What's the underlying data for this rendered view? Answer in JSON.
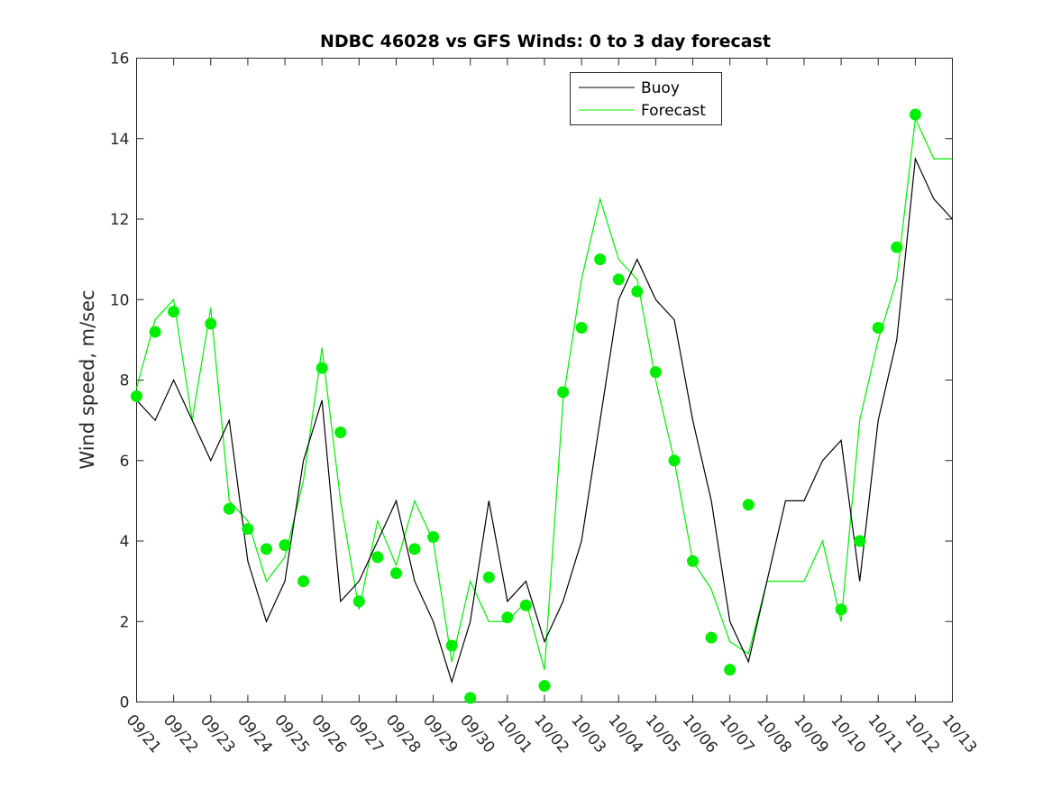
{
  "chart_data": {
    "type": "line",
    "title": "NDBC 46028 vs GFS Winds: 0 to 3 day forecast",
    "xlabel": "",
    "ylabel": "Wind speed, m/sec",
    "xlim": [
      "09/21",
      "10/13"
    ],
    "ylim": [
      0,
      16
    ],
    "yticks": [
      0,
      2,
      4,
      6,
      8,
      10,
      12,
      14,
      16
    ],
    "xticks": [
      "09/21",
      "09/22",
      "09/23",
      "09/24",
      "09/25",
      "09/26",
      "09/27",
      "09/28",
      "09/29",
      "09/30",
      "10/01",
      "10/02",
      "10/03",
      "10/04",
      "10/05",
      "10/06",
      "10/07",
      "10/08",
      "10/09",
      "10/10",
      "10/11",
      "10/12",
      "10/13"
    ],
    "grid": false,
    "legend_position": "top-center",
    "colors": {
      "buoy": "#000000",
      "forecast": "#00ee00",
      "points": "#00ee00"
    },
    "legend": [
      "Buoy",
      "Forecast"
    ],
    "series": [
      {
        "name": "Buoy",
        "x": [
          0,
          0.5,
          1,
          1.5,
          2,
          2.5,
          3,
          3.5,
          4,
          4.5,
          5,
          5.5,
          6,
          6.5,
          7,
          7.5,
          8,
          8.5,
          9,
          9.5,
          10,
          10.5,
          11,
          11.5,
          12,
          12.5,
          13,
          13.5,
          14,
          14.5,
          15,
          15.5,
          16,
          16.5,
          17,
          17.5,
          18,
          18.5,
          19,
          19.5,
          20,
          20.5,
          21,
          21.5,
          22
        ],
        "y": [
          7.5,
          7,
          8,
          7,
          6,
          7,
          3.5,
          2,
          3,
          6,
          7.5,
          2.5,
          3,
          4,
          5,
          3,
          2,
          0.5,
          2,
          5,
          2.5,
          3,
          1.5,
          2.5,
          4,
          7,
          10,
          11,
          10,
          9.5,
          7,
          5,
          2,
          1,
          3,
          5,
          5,
          6,
          6.5,
          3,
          7,
          9,
          13.5,
          12.5,
          12
        ]
      },
      {
        "name": "Forecast",
        "x": [
          0,
          0.5,
          1,
          1.5,
          2,
          2.5,
          3,
          3.5,
          4,
          4.5,
          5,
          5.5,
          6,
          6.5,
          7,
          7.5,
          8,
          8.5,
          9,
          9.5,
          10,
          10.5,
          11,
          11.5,
          12,
          12.5,
          13,
          13.5,
          14,
          14.5,
          15,
          15.5,
          16,
          16.5,
          17,
          17.5,
          18,
          18.5,
          19,
          19.5,
          20,
          20.5,
          21,
          21.5,
          22
        ],
        "y": [
          7.8,
          9.5,
          10,
          7,
          9.8,
          5,
          4.5,
          3,
          3.6,
          5.5,
          8.8,
          5,
          2.3,
          4.5,
          3.4,
          5,
          4,
          1,
          3,
          2,
          2,
          2.5,
          0.8,
          7.5,
          10.5,
          12.5,
          11,
          10.5,
          8,
          6,
          3.5,
          2.8,
          1.5,
          1.2,
          3,
          3,
          3,
          4,
          2,
          7,
          9,
          10.5,
          14.5,
          13.5,
          13.5
        ]
      }
    ],
    "points": {
      "name": "",
      "x": [
        0,
        0.5,
        1,
        2,
        2.5,
        3,
        3.5,
        4,
        4.5,
        5,
        5.5,
        6,
        6.5,
        7,
        7.5,
        8,
        8.5,
        9,
        9.5,
        10,
        10.5,
        11,
        11.5,
        12,
        12.5,
        13,
        13.5,
        14,
        14.5,
        15,
        15.5,
        16,
        16.5,
        19,
        19.5,
        20,
        20.5,
        21,
        21.5,
        22
      ],
      "y": [
        7.6,
        9.2,
        9.7,
        9.4,
        4.8,
        4.3,
        3.8,
        3.9,
        3.0,
        8.3,
        6.7,
        2.5,
        3.6,
        3.2,
        3.8,
        4.1,
        1.4,
        0.1,
        3.1,
        2.1,
        2.4,
        0.4,
        7.7,
        9.3,
        11.0,
        10.5,
        10.2,
        8.2,
        6.0,
        3.5,
        1.6,
        0.8,
        4.9,
        2.3,
        4.0,
        9.3,
        11.3,
        14.6,
        null,
        null
      ]
    }
  }
}
